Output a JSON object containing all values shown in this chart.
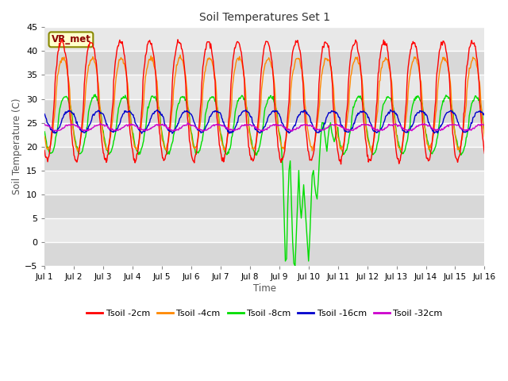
{
  "title": "Soil Temperatures Set 1",
  "xlabel": "Time",
  "ylabel": "Soil Temperature (C)",
  "ylim": [
    -5,
    45
  ],
  "yticks": [
    -5,
    0,
    5,
    10,
    15,
    20,
    25,
    30,
    35,
    40,
    45
  ],
  "xlim": [
    0,
    360
  ],
  "xtick_labels": [
    "Jul 1",
    "Jul 2",
    "Jul 3",
    "Jul 4",
    "Jul 5",
    "Jul 6",
    "Jul 7",
    "Jul 8",
    "Jul 9",
    "Jul 10",
    "Jul 11",
    "Jul 12",
    "Jul 13",
    "Jul 14",
    "Jul 15",
    "Jul 16"
  ],
  "xtick_pos": [
    0,
    24,
    48,
    72,
    96,
    120,
    144,
    168,
    192,
    216,
    240,
    264,
    288,
    312,
    336,
    360
  ],
  "vr_met_label": "VR_met",
  "series": [
    {
      "label": "Tsoil -2cm",
      "color": "#ff0000"
    },
    {
      "label": "Tsoil -4cm",
      "color": "#ff8800"
    },
    {
      "label": "Tsoil -8cm",
      "color": "#00dd00"
    },
    {
      "label": "Tsoil -16cm",
      "color": "#0000cc"
    },
    {
      "label": "Tsoil -32cm",
      "color": "#cc00cc"
    }
  ],
  "bg_color": "#dcdcdc",
  "fig_bg_color": "#ffffff",
  "grid_color": "#ffffff"
}
